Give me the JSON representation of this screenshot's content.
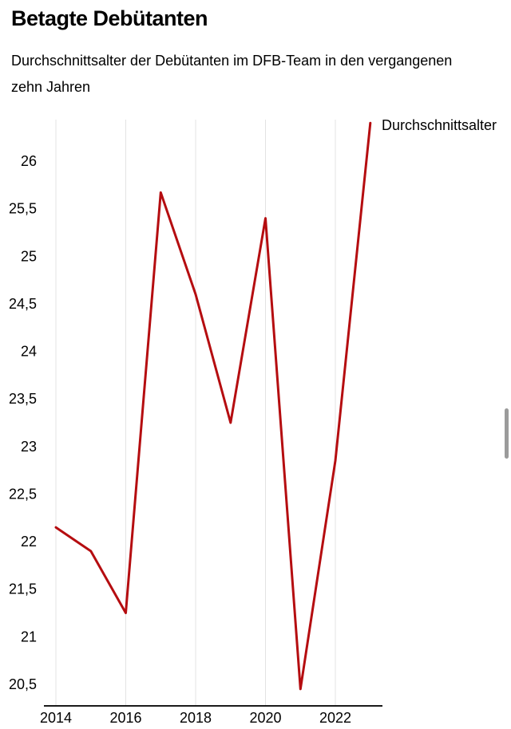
{
  "header": {
    "title": "Betagte Debütanten",
    "subtitle": "Durchschnittsalter der Debütanten im DFB-Team in den vergangenen zehn Jahren"
  },
  "chart_data": {
    "type": "line",
    "title": "Betagte Debütanten",
    "subtitle": "Durchschnittsalter der Debütanten im DFB-Team in den vergangenen zehn Jahren",
    "x": [
      2014,
      2015,
      2016,
      2017,
      2018,
      2019,
      2020,
      2021,
      2022,
      2023
    ],
    "series": [
      {
        "name": "Durchschnittsalter",
        "color": "#b50d10",
        "values": [
          22.15,
          21.9,
          21.25,
          25.67,
          24.6,
          23.25,
          25.4,
          20.45,
          22.85,
          26.4
        ]
      }
    ],
    "x_tick_years": [
      2014,
      2016,
      2018,
      2020,
      2022
    ],
    "x_tick_labels": [
      "2014",
      "2016",
      "2018",
      "2020",
      "2022"
    ],
    "y_ticks": [
      {
        "value": 26,
        "label": "26"
      },
      {
        "value": 25.5,
        "label": "25,5"
      },
      {
        "value": 25,
        "label": "25"
      },
      {
        "value": 24.5,
        "label": "24,5"
      },
      {
        "value": 24,
        "label": "24"
      },
      {
        "value": 23.5,
        "label": "23,5"
      },
      {
        "value": 23,
        "label": "23"
      },
      {
        "value": 22.5,
        "label": "22,5"
      },
      {
        "value": 22,
        "label": "22"
      },
      {
        "value": 21.5,
        "label": "21,5"
      },
      {
        "value": 21,
        "label": "21"
      },
      {
        "value": 20.5,
        "label": "20,5"
      }
    ],
    "ylim": [
      20.3,
      26.55
    ],
    "xlim": [
      2014,
      2023
    ],
    "grid": "vertical",
    "legend_position": "right-of-line-end"
  },
  "colors": {
    "line": "#b50d10",
    "axis": "#1a1a1a",
    "grid": "#e3e3e3",
    "text": "#000000",
    "scrollbar": "#9b9b9b"
  },
  "scrollbar": {
    "visible": true
  }
}
